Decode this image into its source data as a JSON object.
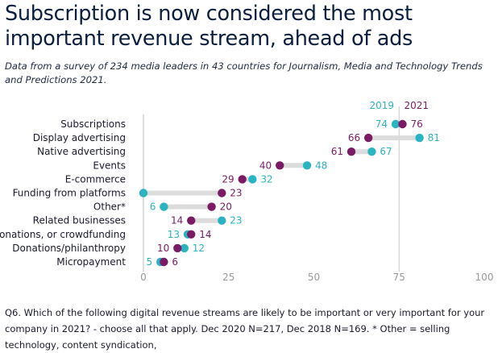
{
  "title": "Subscription is now considered the most important revenue stream, ahead of ads",
  "subtitle": "Data from a survey of 234 media leaders in 43 countries for Journalism, Media and Technology Trends and Predictions 2021.",
  "footnote": "Q6. Which of the following digital revenue streams are likely to be important or very important for your company in 2021? - choose all that apply. Dec 2020 N=217, Dec 2018 N=169. * Other = selling technology, content syndication,",
  "colors": {
    "series_2019": "#2ab3c0",
    "series_2021": "#7b1b64",
    "connector": "#dcdcdc",
    "axis": "#c8c8c8",
    "tick_text": "#999999",
    "label_text": "#1a1a2e"
  },
  "chart_data": {
    "type": "dumbbell",
    "xlim": [
      0,
      100
    ],
    "xticks": [
      "0",
      "25",
      "50",
      "75",
      "100"
    ],
    "legend": [
      "2019",
      "2021"
    ],
    "series": [
      {
        "name": "2019",
        "values": [
          74,
          81,
          67,
          48,
          32,
          0,
          6,
          23,
          13,
          12,
          5
        ]
      },
      {
        "name": "2021",
        "values": [
          76,
          66,
          61,
          40,
          29,
          23,
          20,
          14,
          14,
          10,
          6
        ]
      }
    ],
    "categories": [
      "Subscriptions",
      "Display advertising",
      "Native advertising",
      "Events",
      "E-commerce",
      "Funding from platforms",
      "Other*",
      "Related businesses",
      "Donations, or crowdfunding",
      "Donations/philanthropy",
      "Micropayment"
    ],
    "labels_2019": [
      "74",
      "81",
      "67",
      "48",
      "32",
      "",
      "6",
      "23",
      "13",
      "12",
      "5"
    ],
    "labels_2021": [
      "76",
      "66",
      "61",
      "40",
      "29",
      "23",
      "20",
      "14",
      "14",
      "10",
      "6"
    ]
  }
}
